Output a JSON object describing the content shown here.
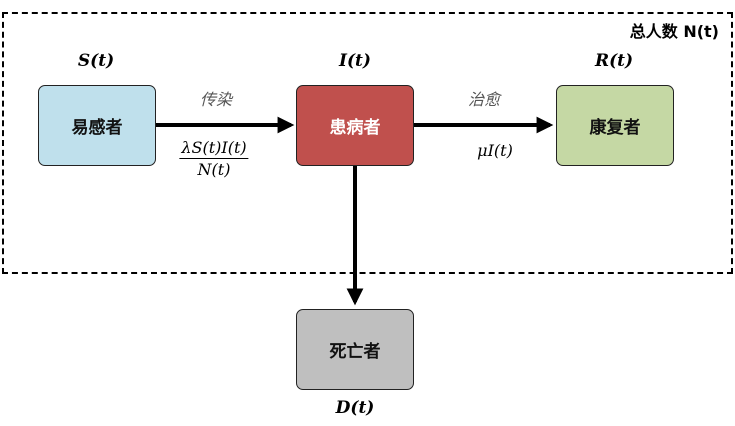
{
  "population": {
    "label": "总人数 N(t)"
  },
  "nodes": {
    "susceptible": {
      "label": "易感者",
      "symbol": "S(t)",
      "color": "#bfe0ec"
    },
    "infected": {
      "label": "患病者",
      "symbol": "I(t)",
      "color": "#c0504d"
    },
    "recovered": {
      "label": "康复者",
      "symbol": "R(t)",
      "color": "#c5d8a4"
    },
    "dead": {
      "label": "死亡者",
      "symbol": "D(t)",
      "color": "#bfbfbf"
    }
  },
  "edges": {
    "infection": {
      "label": "传染",
      "rate_numerator": "λS(t)I(t)",
      "rate_denominator": "N(t)"
    },
    "recovery": {
      "label": "治愈",
      "rate": "μI(t)"
    }
  }
}
